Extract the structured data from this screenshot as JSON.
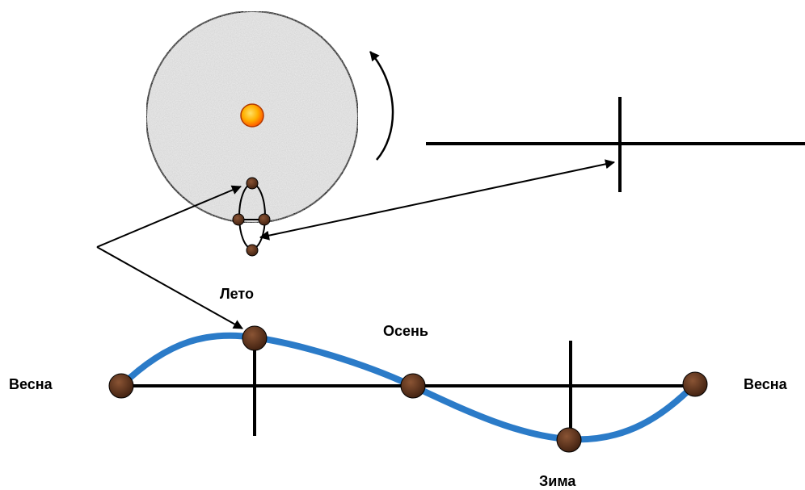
{
  "labels": {
    "spring_left": "Весна",
    "summer": "Лето",
    "autumn": "Осень",
    "winter": "Зима",
    "spring_right": "Весна"
  },
  "colors": {
    "curve": "#2b7bc8",
    "axis": "#000000",
    "planet_dark": "#4a2613",
    "planet_light": "#8a5434",
    "sun_center": "#ffe066",
    "sun_edge": "#ff6a00",
    "disk_fill": "#e6e6e6"
  }
}
